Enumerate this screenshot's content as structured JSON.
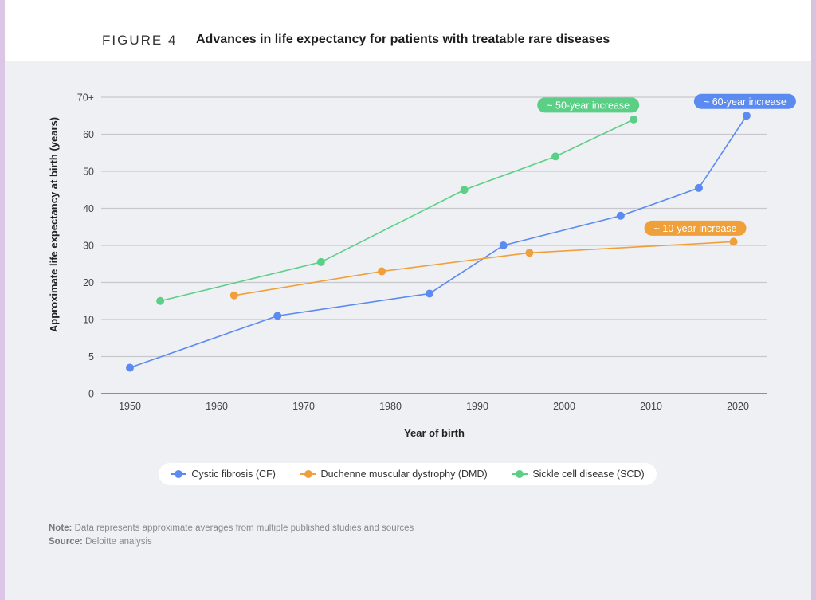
{
  "header": {
    "figure_label": "FIGURE 4",
    "title": "Advances in life expectancy for patients with treatable rare diseases"
  },
  "colors": {
    "cf": "#5b8bf0",
    "dmd": "#f0a03a",
    "scd": "#5ccf86"
  },
  "chart_data": {
    "type": "line",
    "title": "Advances in life expectancy for patients with treatable rare diseases",
    "xlabel": "Year of birth",
    "ylabel": "Approximate life expectancy at birth (years)",
    "x_ticks": [
      1950,
      1960,
      1970,
      1980,
      1990,
      2000,
      2010,
      2020
    ],
    "x_range": [
      1946,
      2023
    ],
    "y_ticks": [
      {
        "value": 0,
        "label": "0"
      },
      {
        "value": 5,
        "label": "5"
      },
      {
        "value": 10,
        "label": "10"
      },
      {
        "value": 20,
        "label": "20"
      },
      {
        "value": 30,
        "label": "30"
      },
      {
        "value": 40,
        "label": "40"
      },
      {
        "value": 50,
        "label": "50"
      },
      {
        "value": 60,
        "label": "60"
      },
      {
        "value": 70,
        "label": "70+"
      }
    ],
    "y_scale_note": "tick labels evenly spaced (0,5,10,20,...,70+)",
    "grid": true,
    "legend_position": "bottom",
    "series": [
      {
        "key": "cf",
        "name": "Cystic fibrosis (CF)",
        "points": [
          [
            1950,
            3.5
          ],
          [
            1967,
            11
          ],
          [
            1984.5,
            17
          ],
          [
            1993,
            30
          ],
          [
            2006.5,
            38
          ],
          [
            2015.5,
            45.5
          ],
          [
            2021,
            65
          ]
        ],
        "annotation": "~ 60-year increase"
      },
      {
        "key": "dmd",
        "name": "Duchenne muscular dystrophy (DMD)",
        "points": [
          [
            1962,
            16.5
          ],
          [
            1979,
            23
          ],
          [
            1996,
            28
          ],
          [
            2019.5,
            31
          ]
        ],
        "annotation": "~ 10-year increase"
      },
      {
        "key": "scd",
        "name": "Sickle cell disease (SCD)",
        "points": [
          [
            1953.5,
            15
          ],
          [
            1972,
            25.5
          ],
          [
            1988.5,
            45
          ],
          [
            1999,
            54
          ],
          [
            2008,
            64
          ]
        ],
        "annotation": "~ 50-year increase"
      }
    ]
  },
  "notes": {
    "note_label": "Note:",
    "note_text": " Data represents approximate averages from multiple published studies and sources",
    "source_label": "Source:",
    "source_text": " Deloitte analysis"
  }
}
